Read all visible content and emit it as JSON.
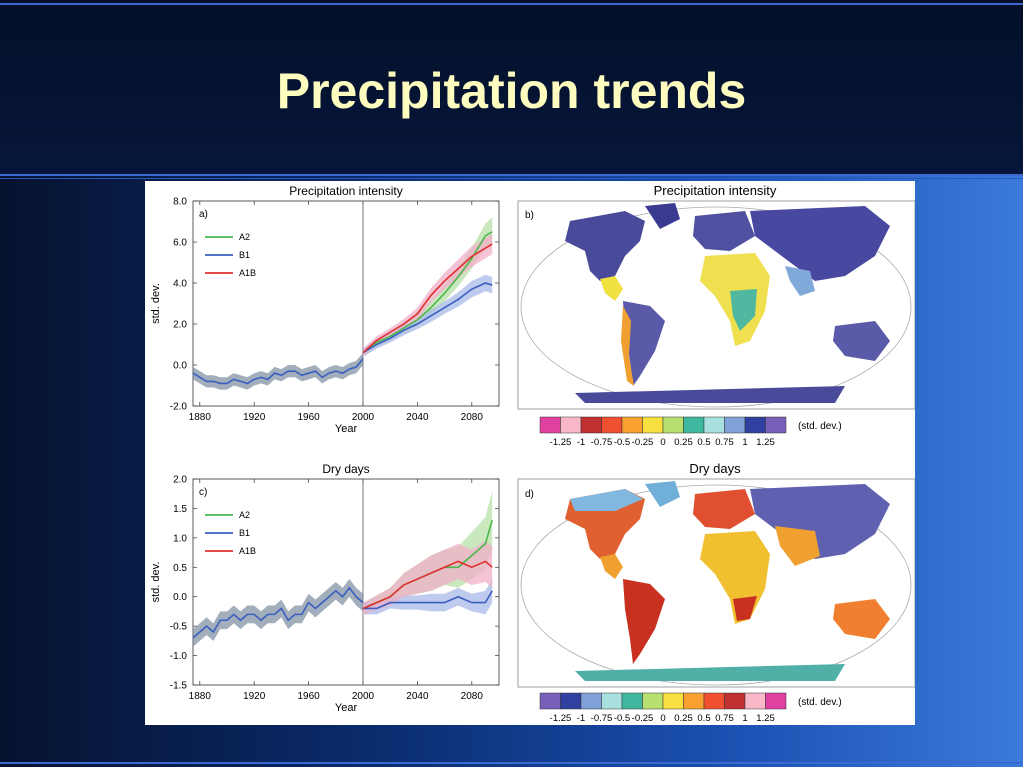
{
  "slide": {
    "title": "Precipitation trends"
  },
  "colors": {
    "A2": "#4cb84c",
    "B1": "#3a5fc0",
    "A1B": "#e03030",
    "A2_band": "#b8e0a8",
    "B1_band": "#a8b8e8",
    "A1B_band": "#f0b0c8",
    "hist_band": "#7a8ca0"
  },
  "chart_data": [
    {
      "panel_label": "a)",
      "type": "line",
      "title": "Precipitation intensity",
      "xlabel": "Year",
      "ylabel": "std. dev.",
      "xlim": [
        1875,
        2100
      ],
      "ylim": [
        -2.0,
        8.0
      ],
      "xticks": [
        1880,
        1920,
        1960,
        2000,
        2040,
        2080
      ],
      "yticks": [
        -2.0,
        0.0,
        2.0,
        4.0,
        6.0,
        8.0
      ],
      "ytick_labels": [
        "-2.0",
        "0.0",
        "2.0",
        "4.0",
        "6.0",
        "8.0"
      ],
      "vline": 2000,
      "legend": [
        "A2",
        "B1",
        "A1B"
      ],
      "historical": {
        "x": [
          1875,
          1880,
          1885,
          1890,
          1895,
          1900,
          1905,
          1910,
          1915,
          1920,
          1925,
          1930,
          1935,
          1940,
          1945,
          1950,
          1955,
          1960,
          1965,
          1970,
          1975,
          1980,
          1985,
          1990,
          1995,
          2000
        ],
        "values": [
          -0.4,
          -0.6,
          -0.8,
          -0.8,
          -0.9,
          -0.9,
          -0.7,
          -0.8,
          -0.9,
          -0.7,
          -0.6,
          -0.7,
          -0.4,
          -0.5,
          -0.3,
          -0.3,
          -0.5,
          -0.4,
          -0.3,
          -0.6,
          -0.4,
          -0.3,
          -0.4,
          -0.2,
          -0.1,
          0.3
        ],
        "spread": 0.3
      },
      "series": [
        {
          "name": "A2",
          "x": [
            2000,
            2010,
            2020,
            2030,
            2040,
            2050,
            2060,
            2070,
            2080,
            2090,
            2095
          ],
          "values": [
            0.6,
            1.1,
            1.4,
            1.8,
            2.2,
            2.8,
            3.5,
            4.3,
            5.2,
            6.3,
            6.5
          ],
          "spread": [
            0.2,
            0.2,
            0.2,
            0.25,
            0.3,
            0.35,
            0.4,
            0.45,
            0.5,
            0.6,
            0.7
          ]
        },
        {
          "name": "B1",
          "x": [
            2000,
            2010,
            2020,
            2030,
            2040,
            2050,
            2060,
            2070,
            2080,
            2090,
            2095
          ],
          "values": [
            0.6,
            1.0,
            1.3,
            1.7,
            2.0,
            2.4,
            2.8,
            3.2,
            3.7,
            4.0,
            3.9
          ],
          "spread": [
            0.2,
            0.2,
            0.2,
            0.25,
            0.25,
            0.3,
            0.3,
            0.35,
            0.4,
            0.4,
            0.4
          ]
        },
        {
          "name": "A1B",
          "x": [
            2000,
            2010,
            2020,
            2030,
            2040,
            2050,
            2060,
            2070,
            2080,
            2090,
            2095
          ],
          "values": [
            0.6,
            1.2,
            1.6,
            2.0,
            2.5,
            3.4,
            4.1,
            4.7,
            5.3,
            5.7,
            5.9
          ],
          "spread": [
            0.2,
            0.2,
            0.2,
            0.25,
            0.3,
            0.35,
            0.4,
            0.45,
            0.5,
            0.5,
            0.5
          ]
        }
      ]
    },
    {
      "panel_label": "c)",
      "type": "line",
      "title": "Dry days",
      "xlabel": "Year",
      "ylabel": "std. dev.",
      "xlim": [
        1875,
        2100
      ],
      "ylim": [
        -1.5,
        2.0
      ],
      "xticks": [
        1880,
        1920,
        1960,
        2000,
        2040,
        2080
      ],
      "yticks": [
        -1.5,
        -1.0,
        -0.5,
        0.0,
        0.5,
        1.0,
        1.5,
        2.0
      ],
      "ytick_labels": [
        "-1.5",
        "-1.0",
        "-0.5",
        "0.0",
        "0.5",
        "1.0",
        "1.5",
        "2.0"
      ],
      "vline": 2000,
      "legend": [
        "A2",
        "B1",
        "A1B"
      ],
      "historical": {
        "x": [
          1875,
          1880,
          1885,
          1890,
          1895,
          1900,
          1905,
          1910,
          1915,
          1920,
          1925,
          1930,
          1935,
          1940,
          1945,
          1950,
          1955,
          1960,
          1965,
          1970,
          1975,
          1980,
          1985,
          1990,
          1995,
          2000
        ],
        "values": [
          -0.7,
          -0.6,
          -0.5,
          -0.6,
          -0.4,
          -0.4,
          -0.3,
          -0.4,
          -0.3,
          -0.3,
          -0.4,
          -0.3,
          -0.3,
          -0.2,
          -0.4,
          -0.3,
          -0.3,
          -0.1,
          -0.2,
          -0.1,
          -0.0,
          0.1,
          0.0,
          0.15,
          0.0,
          -0.1
        ],
        "spread": 0.15
      },
      "series": [
        {
          "name": "A2",
          "x": [
            2000,
            2010,
            2020,
            2030,
            2040,
            2050,
            2060,
            2070,
            2080,
            2090,
            2095
          ],
          "values": [
            -0.2,
            -0.1,
            0.0,
            0.2,
            0.3,
            0.4,
            0.5,
            0.5,
            0.7,
            0.9,
            1.3
          ],
          "spread": [
            0.1,
            0.12,
            0.15,
            0.2,
            0.25,
            0.3,
            0.3,
            0.35,
            0.4,
            0.45,
            0.5
          ]
        },
        {
          "name": "B1",
          "x": [
            2000,
            2010,
            2020,
            2030,
            2040,
            2050,
            2060,
            2070,
            2080,
            2090,
            2095
          ],
          "values": [
            -0.2,
            -0.2,
            -0.1,
            -0.1,
            -0.1,
            -0.1,
            -0.1,
            0.0,
            -0.1,
            -0.1,
            0.1
          ],
          "spread": [
            0.1,
            0.1,
            0.1,
            0.12,
            0.12,
            0.15,
            0.15,
            0.15,
            0.15,
            0.2,
            0.2
          ]
        },
        {
          "name": "A1B",
          "x": [
            2000,
            2010,
            2020,
            2030,
            2040,
            2050,
            2060,
            2070,
            2080,
            2090,
            2095
          ],
          "values": [
            -0.2,
            -0.1,
            0.0,
            0.2,
            0.3,
            0.4,
            0.5,
            0.6,
            0.5,
            0.6,
            0.5
          ],
          "spread": [
            0.1,
            0.12,
            0.15,
            0.2,
            0.25,
            0.3,
            0.3,
            0.3,
            0.3,
            0.35,
            0.35
          ]
        }
      ]
    },
    {
      "panel_label": "b)",
      "type": "heatmap",
      "title": "Precipitation intensity",
      "colorbar_labels": [
        "-1.25",
        "-1",
        "-0.75",
        "-0.5",
        "-0.25",
        "0",
        "0.25",
        "0.5",
        "0.75",
        "1",
        "1.25"
      ],
      "colorbar_colors": [
        "#e040a0",
        "#f8b8c8",
        "#c03030",
        "#f05030",
        "#f8a030",
        "#f8e040",
        "#b8e070",
        "#40b8a0",
        "#a8e0e0",
        "#80a0d8",
        "#3040a0",
        "#7860b8"
      ],
      "units": "(std. dev.)"
    },
    {
      "panel_label": "d)",
      "type": "heatmap",
      "title": "Dry days",
      "colorbar_labels": [
        "-1.25",
        "-1",
        "-0.75",
        "-0.5",
        "-0.25",
        "0",
        "0.25",
        "0.5",
        "0.75",
        "1",
        "1.25"
      ],
      "colorbar_colors": [
        "#7860b8",
        "#3040a0",
        "#80a0d8",
        "#a8e0e0",
        "#40b8a0",
        "#b8e070",
        "#f8e040",
        "#f8a030",
        "#f05030",
        "#c03030",
        "#f8b8c8",
        "#e040a0"
      ],
      "units": "(std. dev.)"
    }
  ]
}
